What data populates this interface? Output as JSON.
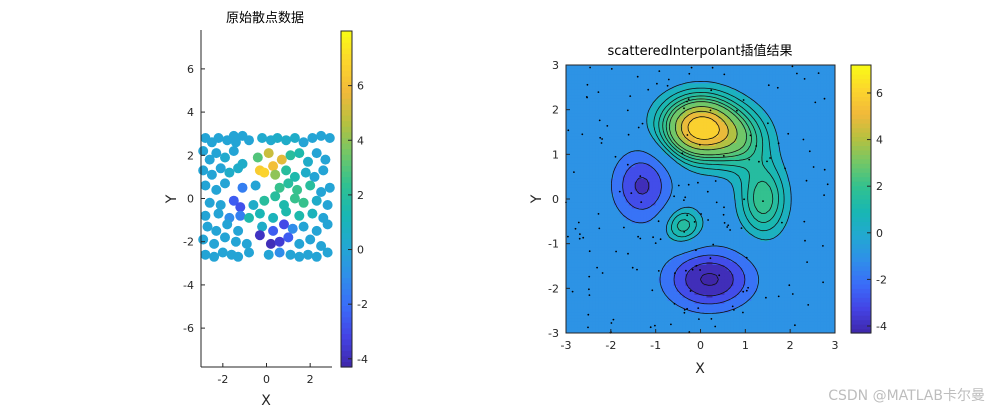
{
  "watermark": "CSDN @MATLAB卡尔曼",
  "colormap": [
    "#3e26a8",
    "#4443e4",
    "#3a6cf9",
    "#2f8fe9",
    "#22a8d1",
    "#18b7b3",
    "#31c190",
    "#72c767",
    "#b6c140",
    "#f1b93a",
    "#fcd52d",
    "#f9fb15"
  ],
  "chart_data": [
    {
      "type": "scatter",
      "title": "原始散点数据",
      "xlabel": "X",
      "ylabel": "Y",
      "xlim": [
        -3,
        3
      ],
      "ylim": [
        -7.8,
        7.8
      ],
      "xticks": [
        -2,
        0,
        2
      ],
      "yticks": [
        -6,
        -4,
        -2,
        0,
        2,
        4,
        6
      ],
      "colorbar": {
        "clim": [
          -4.3,
          8.0
        ],
        "ticks": [
          -4,
          -2,
          0,
          2,
          4,
          6
        ]
      },
      "points": [
        [
          -2.8,
          2.8,
          0
        ],
        [
          -2.5,
          2.6,
          0
        ],
        [
          -2.2,
          2.8,
          0
        ],
        [
          -1.8,
          2.7,
          0
        ],
        [
          -1.5,
          2.9,
          0
        ],
        [
          -1.4,
          2.6,
          0
        ],
        [
          -1.1,
          2.9,
          0
        ],
        [
          -0.8,
          2.7,
          0
        ],
        [
          -0.2,
          2.8,
          0.3
        ],
        [
          0.2,
          2.7,
          0.3
        ],
        [
          0.5,
          2.8,
          0.5
        ],
        [
          0.9,
          2.7,
          0.5
        ],
        [
          1.3,
          2.8,
          0.5
        ],
        [
          1.7,
          2.6,
          0
        ],
        [
          2.1,
          2.8,
          0
        ],
        [
          2.5,
          2.9,
          0
        ],
        [
          2.9,
          2.8,
          0
        ],
        [
          -2.9,
          2.2,
          0
        ],
        [
          -2.6,
          1.8,
          0
        ],
        [
          -2.3,
          2.1,
          0
        ],
        [
          -1.9,
          1.9,
          0.3
        ],
        [
          -1.5,
          2.2,
          0
        ],
        [
          -1.1,
          1.6,
          0.5
        ],
        [
          -0.4,
          1.9,
          3
        ],
        [
          0.1,
          2.1,
          5
        ],
        [
          0.3,
          1.5,
          6
        ],
        [
          0.7,
          1.8,
          5.5
        ],
        [
          1.1,
          2.0,
          2
        ],
        [
          1.5,
          2.1,
          1.5
        ],
        [
          1.9,
          1.7,
          0.5
        ],
        [
          2.3,
          2.1,
          0
        ],
        [
          2.7,
          1.8,
          0
        ],
        [
          -2.9,
          1.3,
          0
        ],
        [
          -2.5,
          1.1,
          0
        ],
        [
          -2.1,
          1.4,
          0
        ],
        [
          -1.7,
          1.2,
          0.5
        ],
        [
          -1.3,
          1.4,
          0.5
        ],
        [
          -0.3,
          1.3,
          6.5
        ],
        [
          -0.1,
          1.2,
          6.8
        ],
        [
          0.4,
          1.1,
          4
        ],
        [
          0.9,
          1.3,
          2
        ],
        [
          1.3,
          1.0,
          1.5
        ],
        [
          1.8,
          1.2,
          0.5
        ],
        [
          2.2,
          1.0,
          0
        ],
        [
          2.6,
          1.3,
          0
        ],
        [
          -2.8,
          0.6,
          0
        ],
        [
          -2.3,
          0.4,
          0
        ],
        [
          -1.9,
          0.7,
          0
        ],
        [
          -1.1,
          0.5,
          -1.5
        ],
        [
          -0.5,
          0.6,
          0
        ],
        [
          0.6,
          0.5,
          2.5
        ],
        [
          1.0,
          0.7,
          2
        ],
        [
          1.4,
          0.4,
          2.5
        ],
        [
          2.0,
          0.6,
          2
        ],
        [
          2.5,
          0.3,
          0
        ],
        [
          2.9,
          0.5,
          0
        ],
        [
          -2.6,
          -0.2,
          0
        ],
        [
          -2.1,
          -0.3,
          0
        ],
        [
          -1.5,
          -0.1,
          -2.5
        ],
        [
          -1.2,
          -0.4,
          -2.8
        ],
        [
          -0.6,
          -0.3,
          0.5
        ],
        [
          -0.1,
          -0.1,
          2
        ],
        [
          0.4,
          0.1,
          2
        ],
        [
          0.8,
          -0.3,
          1.5
        ],
        [
          1.3,
          0.0,
          2.5
        ],
        [
          1.7,
          -0.2,
          2.5
        ],
        [
          2.3,
          -0.1,
          0.5
        ],
        [
          2.8,
          -0.3,
          0
        ],
        [
          -2.8,
          -0.8,
          0
        ],
        [
          -2.2,
          -0.7,
          0
        ],
        [
          -1.7,
          -0.9,
          -1
        ],
        [
          -1.2,
          -0.8,
          -1.5
        ],
        [
          -0.8,
          -0.9,
          1.5
        ],
        [
          -0.3,
          -0.7,
          1.2
        ],
        [
          0.3,
          -0.9,
          1
        ],
        [
          0.9,
          -0.6,
          1.5
        ],
        [
          1.5,
          -0.8,
          1.5
        ],
        [
          2.1,
          -0.7,
          1
        ],
        [
          2.6,
          -0.9,
          0
        ],
        [
          -2.7,
          -1.3,
          0
        ],
        [
          -2.3,
          -1.5,
          0
        ],
        [
          -1.8,
          -1.2,
          0
        ],
        [
          -1.3,
          -1.5,
          0
        ],
        [
          -0.2,
          -1.3,
          0.5
        ],
        [
          0.3,
          -1.5,
          -2.5
        ],
        [
          0.8,
          -1.2,
          -3
        ],
        [
          1.2,
          -1.4,
          -1
        ],
        [
          1.7,
          -1.3,
          0
        ],
        [
          2.3,
          -1.5,
          0
        ],
        [
          2.8,
          -1.2,
          0
        ],
        [
          -2.9,
          -1.9,
          0
        ],
        [
          -2.4,
          -2.1,
          0
        ],
        [
          -1.9,
          -1.8,
          0
        ],
        [
          -1.4,
          -2.0,
          0
        ],
        [
          -0.9,
          -2.1,
          0
        ],
        [
          -0.3,
          -1.7,
          -3.8
        ],
        [
          0.2,
          -2.1,
          -4
        ],
        [
          0.6,
          -2.0,
          -3.5
        ],
        [
          1.0,
          -1.8,
          -2.5
        ],
        [
          1.5,
          -2.1,
          0
        ],
        [
          2.0,
          -1.9,
          0
        ],
        [
          2.5,
          -2.2,
          0
        ],
        [
          -2.8,
          -2.6,
          0
        ],
        [
          -2.4,
          -2.7,
          0
        ],
        [
          -2.0,
          -2.5,
          0
        ],
        [
          -1.6,
          -2.6,
          0
        ],
        [
          -1.3,
          -2.7,
          0
        ],
        [
          -0.8,
          -2.5,
          0
        ],
        [
          0.1,
          -2.6,
          0
        ],
        [
          0.6,
          -2.5,
          -1
        ],
        [
          1.1,
          -2.6,
          0
        ],
        [
          1.5,
          -2.7,
          0
        ],
        [
          1.9,
          -2.6,
          0
        ],
        [
          2.3,
          -2.7,
          0
        ],
        [
          2.8,
          -2.5,
          0
        ]
      ]
    },
    {
      "type": "heatmap",
      "title": "scatteredInterpolant插值结果",
      "xlabel": "X",
      "ylabel": "Y",
      "xlim": [
        -3,
        3
      ],
      "ylim": [
        -3,
        3
      ],
      "xticks": [
        -3,
        -2,
        -1,
        0,
        1,
        2,
        3
      ],
      "yticks": [
        -3,
        -2,
        -1,
        0,
        1,
        2,
        3
      ],
      "colorbar": {
        "clim": [
          -4.3,
          7.2
        ],
        "ticks": [
          -4,
          -2,
          0,
          2,
          4,
          6
        ]
      },
      "features": [
        {
          "x": 0.0,
          "y": 1.6,
          "amplitude": 6.8,
          "sx": 0.55,
          "sy": 0.45
        },
        {
          "x": 0.9,
          "y": 1.3,
          "amplitude": 2.0,
          "sx": 0.45,
          "sy": 0.45
        },
        {
          "x": -1.3,
          "y": 0.3,
          "amplitude": -3.2,
          "sx": 0.45,
          "sy": 0.55
        },
        {
          "x": 0.2,
          "y": -1.8,
          "amplitude": -4.2,
          "sx": 0.65,
          "sy": 0.45
        },
        {
          "x": 1.4,
          "y": 0.0,
          "amplitude": 2.4,
          "sx": 0.35,
          "sy": 0.55
        },
        {
          "x": -0.4,
          "y": -0.6,
          "amplitude": 1.9,
          "sx": 0.3,
          "sy": 0.3
        }
      ],
      "contour_levels": [
        -4,
        -3,
        -2,
        -1,
        0.5,
        1,
        1.5,
        2,
        2.5,
        3,
        4,
        5,
        6
      ]
    }
  ]
}
